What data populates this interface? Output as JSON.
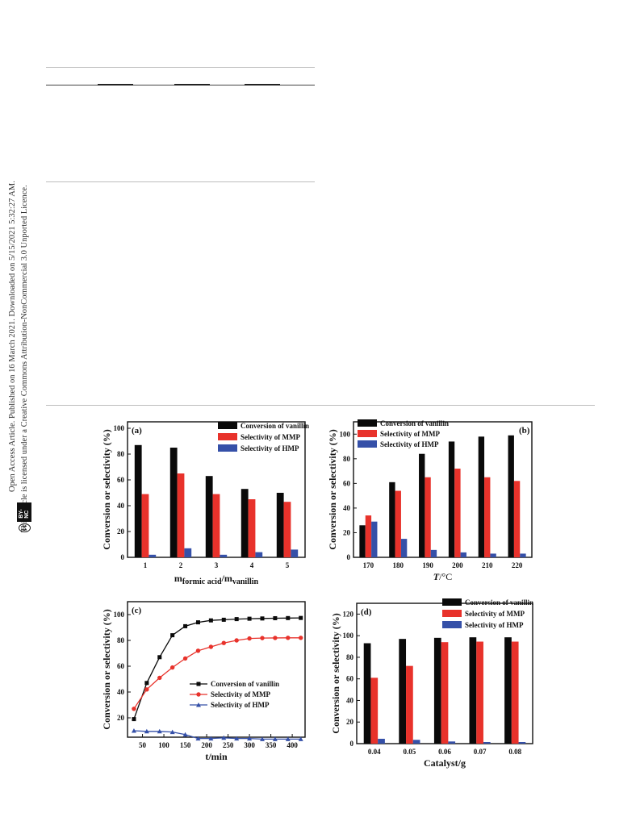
{
  "sidebar": {
    "line1": "Open Access Article. Published on 16 March 2021. Downloaded on 5/15/2021 5:32:27 AM.",
    "line2": "This article is licensed under a Creative Commons Attribution-NonCommercial 3.0 Unported Licence.",
    "cc_symbol": "cc",
    "cc_label": "BY-NC"
  },
  "colors": {
    "black": "#0a0a0a",
    "red": "#e8322b",
    "blue": "#3550a8"
  },
  "chart_data": [
    {
      "id": "a",
      "type": "bar",
      "tag": "(a)",
      "xlabel_main": "m",
      "xlabel_sub1": "formic acid",
      "xlabel_sep": "/m",
      "xlabel_sub2": "vanillin",
      "ylabel": "Conversion or selectivity (%)",
      "ylim": [
        0,
        105
      ],
      "yticks": [
        0,
        20,
        40,
        60,
        80,
        100
      ],
      "categories": [
        "1",
        "2",
        "3",
        "4",
        "5"
      ],
      "series": [
        {
          "name": "Conversion of vanillin",
          "color": "#0a0a0a",
          "values": [
            87,
            85,
            63,
            53,
            50
          ]
        },
        {
          "name": "Selectivity of MMP",
          "color": "#e8322b",
          "values": [
            49,
            65,
            49,
            45,
            43
          ]
        },
        {
          "name": "Selectivity of HMP",
          "color": "#3550a8",
          "values": [
            2,
            7,
            2,
            4,
            6
          ]
        }
      ],
      "legend": "top-right"
    },
    {
      "id": "b",
      "type": "bar",
      "tag": "(b)",
      "xlabel_italic": "T",
      "xlabel_rest": "/°C",
      "ylabel": "Conversion or selectivity (%)",
      "ylim": [
        0,
        110
      ],
      "yticks": [
        0,
        20,
        40,
        60,
        80,
        100
      ],
      "categories": [
        "170",
        "180",
        "190",
        "200",
        "210",
        "220"
      ],
      "series": [
        {
          "name": "Conversion of vanillin",
          "color": "#0a0a0a",
          "values": [
            26,
            61,
            84,
            94,
            98,
            99
          ]
        },
        {
          "name": "Selectivity of MMP",
          "color": "#e8322b",
          "values": [
            34,
            54,
            65,
            72,
            65,
            62
          ]
        },
        {
          "name": "Selectivity of HMP",
          "color": "#3550a8",
          "values": [
            29,
            15,
            6,
            4,
            3,
            3
          ]
        }
      ],
      "legend": "top-left"
    },
    {
      "id": "c",
      "type": "line",
      "tag": "(c)",
      "xlabel": "t/min",
      "ylabel": "Conversion or selectivity (%)",
      "xlim": [
        15,
        430
      ],
      "ylim": [
        5,
        110
      ],
      "xticks": [
        50,
        100,
        150,
        200,
        250,
        300,
        350,
        400
      ],
      "yticks": [
        20,
        40,
        60,
        80,
        100
      ],
      "x": [
        30,
        60,
        90,
        120,
        150,
        180,
        210,
        240,
        270,
        300,
        330,
        360,
        390,
        420
      ],
      "series": [
        {
          "name": "Conversion of vanillin",
          "color": "#0a0a0a",
          "marker": "square",
          "values": [
            19,
            47,
            67,
            84,
            91,
            94,
            95.5,
            96,
            96.5,
            96.8,
            97,
            97.2,
            97.3,
            97.4
          ]
        },
        {
          "name": "Selectivity of MMP",
          "color": "#e8322b",
          "marker": "circle",
          "values": [
            27,
            42,
            51,
            59,
            66,
            72,
            75,
            78,
            80,
            81.5,
            81.8,
            81.9,
            82,
            82
          ]
        },
        {
          "name": "Selectivity of HMP",
          "color": "#3550a8",
          "marker": "triangle",
          "values": [
            10,
            9.5,
            9.5,
            9,
            7,
            4,
            4,
            4.5,
            4,
            4,
            3.5,
            3.5,
            3.5,
            3.5
          ]
        }
      ],
      "legend": "bottom-right"
    },
    {
      "id": "d",
      "type": "bar",
      "tag": "(d)",
      "xlabel": "Catalyst/g",
      "ylabel": "Conversion or selectivity (%)",
      "ylim": [
        0,
        130
      ],
      "yticks": [
        0,
        20,
        40,
        60,
        80,
        100,
        120
      ],
      "categories": [
        "0.04",
        "0.05",
        "0.06",
        "0.07",
        "0.08"
      ],
      "series": [
        {
          "name": "Conversion of vanillin",
          "color": "#0a0a0a",
          "values": [
            93,
            97,
            98,
            98.5,
            98.5
          ]
        },
        {
          "name": "Selectivity of MMP",
          "color": "#e8322b",
          "values": [
            61,
            72,
            94,
            94.5,
            94.5
          ]
        },
        {
          "name": "Selectivity of HMP",
          "color": "#3550a8",
          "values": [
            4.5,
            3.5,
            2,
            1.5,
            1.5
          ]
        }
      ],
      "legend": "top-right"
    }
  ]
}
